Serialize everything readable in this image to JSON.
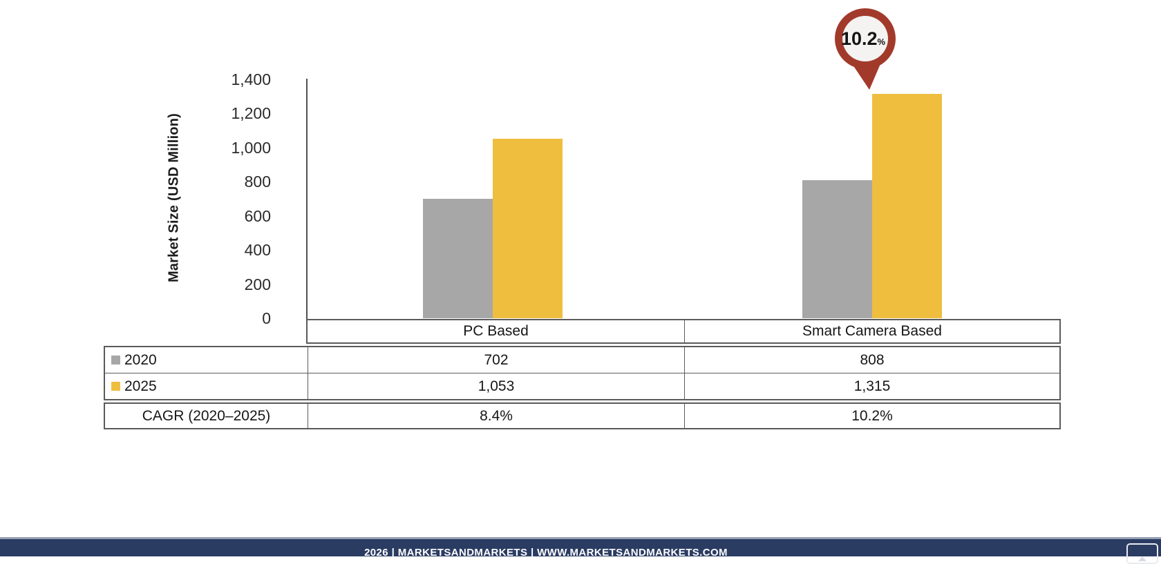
{
  "chart_data": {
    "type": "bar",
    "title": "",
    "ylabel": "Market Size (USD Million)",
    "ylim": [
      0,
      1400
    ],
    "ytick_labels": [
      "0",
      "200",
      "400",
      "600",
      "800",
      "1,000",
      "1,200",
      "1,400"
    ],
    "categories": [
      "PC Based",
      "Smart Camera Based"
    ],
    "series": [
      {
        "name": "2020",
        "color": "#A7A7A7",
        "values": [
          702,
          808
        ],
        "display_values": [
          "702",
          "808"
        ]
      },
      {
        "name": "2025",
        "color": "#EFBE3F",
        "values": [
          1053,
          1315
        ],
        "display_values": [
          "1,053",
          "1,315"
        ]
      }
    ],
    "cagr_row": {
      "label": "CAGR (2020–2025)",
      "values": [
        "8.4%",
        "10.2%"
      ]
    },
    "annotation": {
      "value": "10.2",
      "suffix": "%",
      "category": "Smart Camera Based",
      "series": "2025",
      "ring_color": "#A23A2B",
      "face_color": "#F4F3F1",
      "text_color": "#141414"
    },
    "legend_position": "table-left",
    "grid": false
  },
  "footer": {
    "text": "2026 | MARKETSANDMARKETS | WWW.MARKETSANDMARKETS.COM",
    "background": "#2B3C63",
    "accent_line_color": "#96A0B4",
    "icon": "expand-icon"
  }
}
